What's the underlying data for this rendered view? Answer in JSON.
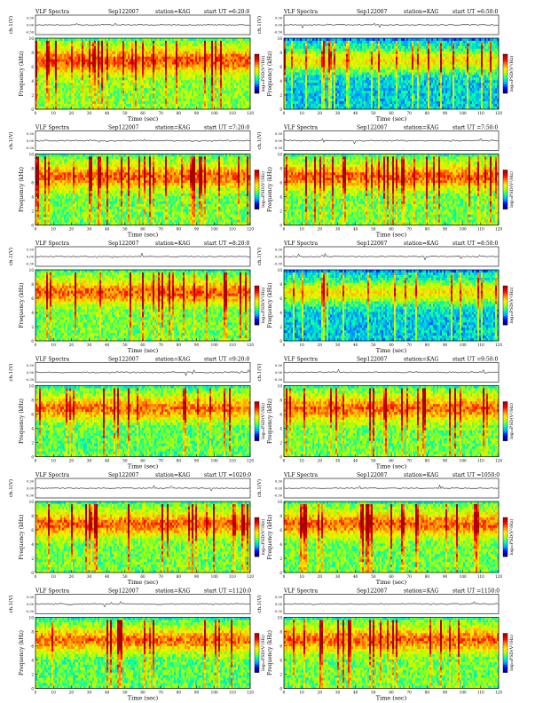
{
  "page": {
    "panel_header": {
      "left": "VLF Spectra",
      "date": "Sep122007",
      "station": "station=KAG",
      "start_prefix": "start UT ="
    },
    "labels": {
      "waveform_axis": "ch.1(V)",
      "freq_axis": "Frequency (kHz)",
      "time_axis": "Time (sec)",
      "colorbar": "log₁₀PSD(V²/Hz)"
    },
    "colors": {
      "cmap": [
        "#00006e",
        "#0000ff",
        "#00aaff",
        "#00ffaa",
        "#aaff00",
        "#ffee00",
        "#ff8800",
        "#ff0000",
        "#aa0000"
      ]
    }
  },
  "chart_data": [
    {
      "type": "heatmap",
      "start_ut": "6:20:0",
      "xlim": [
        0,
        120
      ],
      "ylim": [
        0,
        10
      ],
      "x_ticks": [
        0,
        10,
        20,
        30,
        40,
        50,
        60,
        70,
        80,
        90,
        100,
        110,
        120
      ],
      "y_ticks": [
        0,
        2,
        4,
        6,
        8,
        10
      ],
      "waveform_ticks": [
        "0.30",
        "0.00",
        "-0.30"
      ],
      "band_top_khz": 9.5
    },
    {
      "type": "heatmap",
      "start_ut": "6:50:0",
      "xlim": [
        0,
        120
      ],
      "ylim": [
        0,
        10
      ],
      "x_ticks": [
        0,
        10,
        20,
        30,
        40,
        50,
        60,
        70,
        80,
        90,
        100,
        110,
        120
      ],
      "y_ticks": [
        0,
        2,
        4,
        6,
        8,
        10
      ],
      "waveform_ticks": [
        "0.30",
        "0.00",
        "-0.30"
      ],
      "band_top_khz": 9.5
    },
    {
      "type": "heatmap",
      "start_ut": "7:20:0",
      "xlim": [
        0,
        120
      ],
      "ylim": [
        0,
        10
      ],
      "x_ticks": [
        0,
        10,
        20,
        30,
        40,
        50,
        60,
        70,
        80,
        90,
        100,
        110,
        120
      ],
      "y_ticks": [
        0,
        2,
        4,
        6,
        8,
        10
      ],
      "waveform_ticks": [
        "0.30",
        "0.00",
        "-0.30"
      ],
      "band_top_khz": 9.5
    },
    {
      "type": "heatmap",
      "start_ut": "7:50:0",
      "xlim": [
        0,
        120
      ],
      "ylim": [
        0,
        10
      ],
      "x_ticks": [
        0,
        10,
        20,
        30,
        40,
        50,
        60,
        70,
        80,
        90,
        100,
        110,
        120
      ],
      "y_ticks": [
        0,
        2,
        4,
        6,
        8,
        10
      ],
      "waveform_ticks": [
        "0.30",
        "0.00",
        "-0.30"
      ],
      "band_top_khz": 9.5
    },
    {
      "type": "heatmap",
      "start_ut": "8:20:0",
      "xlim": [
        0,
        120
      ],
      "ylim": [
        0,
        10
      ],
      "x_ticks": [
        0,
        10,
        20,
        30,
        40,
        50,
        60,
        70,
        80,
        90,
        100,
        110,
        120
      ],
      "y_ticks": [
        0,
        2,
        4,
        6,
        8,
        10
      ],
      "waveform_ticks": [
        "0.30",
        "0.00",
        "-0.30"
      ],
      "band_top_khz": 9.5
    },
    {
      "type": "heatmap",
      "start_ut": "8:50:0",
      "xlim": [
        0,
        120
      ],
      "ylim": [
        0,
        10
      ],
      "x_ticks": [
        0,
        10,
        20,
        30,
        40,
        50,
        60,
        70,
        80,
        90,
        100,
        110,
        120
      ],
      "y_ticks": [
        0,
        2,
        4,
        6,
        8,
        10
      ],
      "waveform_ticks": [
        "0.30",
        "0.00",
        "-0.30"
      ],
      "band_top_khz": 9.5
    },
    {
      "type": "heatmap",
      "start_ut": "9:20:0",
      "xlim": [
        0,
        120
      ],
      "ylim": [
        0,
        10
      ],
      "x_ticks": [
        0,
        10,
        20,
        30,
        40,
        50,
        60,
        70,
        80,
        90,
        100,
        110,
        120
      ],
      "y_ticks": [
        0,
        2,
        4,
        6,
        8,
        10
      ],
      "waveform_ticks": [
        "0.30",
        "0.00",
        "-0.30"
      ],
      "band_top_khz": 9.5
    },
    {
      "type": "heatmap",
      "start_ut": "9:50:0",
      "xlim": [
        0,
        120
      ],
      "ylim": [
        0,
        10
      ],
      "x_ticks": [
        0,
        10,
        20,
        30,
        40,
        50,
        60,
        70,
        80,
        90,
        100,
        110,
        120
      ],
      "y_ticks": [
        0,
        2,
        4,
        6,
        8,
        10
      ],
      "waveform_ticks": [
        "0.30",
        "0.00",
        "-0.30"
      ],
      "band_top_khz": 9.5
    },
    {
      "type": "heatmap",
      "start_ut": "1020:0",
      "xlim": [
        0,
        120
      ],
      "ylim": [
        0,
        10
      ],
      "x_ticks": [
        0,
        10,
        20,
        30,
        40,
        50,
        60,
        70,
        80,
        90,
        100,
        110,
        120
      ],
      "y_ticks": [
        0,
        2,
        4,
        6,
        8,
        10
      ],
      "waveform_ticks": [
        "0.30",
        "0.00",
        "-0.30"
      ],
      "band_top_khz": 9.5
    },
    {
      "type": "heatmap",
      "start_ut": "1050:0",
      "xlim": [
        0,
        120
      ],
      "ylim": [
        0,
        10
      ],
      "x_ticks": [
        0,
        10,
        20,
        30,
        40,
        50,
        60,
        70,
        80,
        90,
        100,
        110,
        120
      ],
      "y_ticks": [
        0,
        2,
        4,
        6,
        8,
        10
      ],
      "waveform_ticks": [
        "0.30",
        "0.00",
        "-0.30"
      ],
      "band_top_khz": 9.5
    },
    {
      "type": "heatmap",
      "start_ut": "1120:0",
      "xlim": [
        0,
        120
      ],
      "ylim": [
        0,
        10
      ],
      "x_ticks": [
        0,
        10,
        20,
        30,
        40,
        50,
        60,
        70,
        80,
        90,
        100,
        110,
        120
      ],
      "y_ticks": [
        0,
        2,
        4,
        6,
        8,
        10
      ],
      "waveform_ticks": [
        "0.30",
        "0.00",
        "-0.30"
      ],
      "band_top_khz": 9.5
    },
    {
      "type": "heatmap",
      "start_ut": "1150:0",
      "xlim": [
        0,
        120
      ],
      "ylim": [
        0,
        10
      ],
      "x_ticks": [
        0,
        10,
        20,
        30,
        40,
        50,
        60,
        70,
        80,
        90,
        100,
        110,
        120
      ],
      "y_ticks": [
        0,
        2,
        4,
        6,
        8,
        10
      ],
      "waveform_ticks": [
        "0.30",
        "0.00",
        "-0.30"
      ],
      "band_top_khz": 9.5
    }
  ]
}
